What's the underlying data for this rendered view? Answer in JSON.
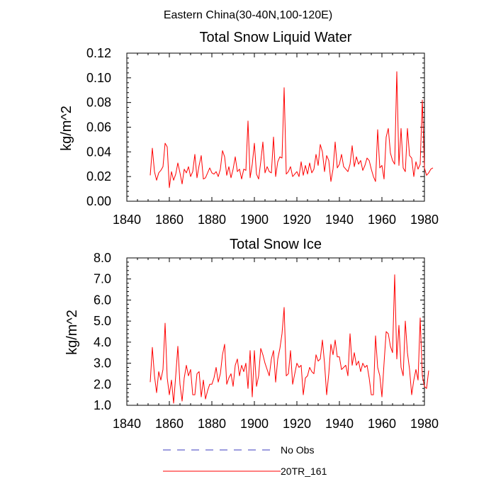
{
  "figure": {
    "title": "Eastern China(30-40N,100-120E)"
  },
  "legend": {
    "placement": "bottom-center",
    "items": [
      {
        "label": "No Obs",
        "color": "#3b3bbf",
        "style": "dashed"
      },
      {
        "label": "20TR_161",
        "color": "#ff0000",
        "style": "solid"
      }
    ]
  },
  "chart_data": [
    {
      "type": "line",
      "title": "Total Snow Liquid Water",
      "xlabel": "",
      "ylabel": "kg/m^2",
      "xlim": [
        1840,
        1980
      ],
      "ylim": [
        0,
        0.12
      ],
      "xticks": [
        1840,
        1860,
        1880,
        1900,
        1920,
        1940,
        1960,
        1980
      ],
      "xtick_labels": [
        "1840",
        "1860",
        "1880",
        "1900",
        "1920",
        "1940",
        "1960",
        "1980"
      ],
      "yticks": [
        0,
        0.02,
        0.04,
        0.06,
        0.08,
        0.1,
        0.12
      ],
      "ytick_labels": [
        "0.00",
        "0.02",
        "0.04",
        "0.06",
        "0.08",
        "0.10",
        "0.12"
      ],
      "grid": false,
      "series": [
        {
          "name": "20TR_161",
          "color": "#ff0000",
          "x_start": 1851,
          "values": [
            0.021,
            0.043,
            0.024,
            0.017,
            0.023,
            0.025,
            0.028,
            0.047,
            0.044,
            0.011,
            0.024,
            0.017,
            0.022,
            0.031,
            0.023,
            0.014,
            0.026,
            0.023,
            0.028,
            0.02,
            0.024,
            0.038,
            0.019,
            0.029,
            0.037,
            0.018,
            0.019,
            0.023,
            0.027,
            0.023,
            0.022,
            0.024,
            0.02,
            0.026,
            0.041,
            0.036,
            0.021,
            0.028,
            0.019,
            0.026,
            0.036,
            0.024,
            0.026,
            0.018,
            0.026,
            0.025,
            0.065,
            0.019,
            0.03,
            0.047,
            0.022,
            0.018,
            0.032,
            0.048,
            0.023,
            0.028,
            0.024,
            0.023,
            0.052,
            0.02,
            0.032,
            0.036,
            0.035,
            0.092,
            0.022,
            0.024,
            0.028,
            0.02,
            0.022,
            0.024,
            0.02,
            0.032,
            0.021,
            0.029,
            0.022,
            0.031,
            0.023,
            0.026,
            0.038,
            0.029,
            0.046,
            0.04,
            0.024,
            0.037,
            0.033,
            0.016,
            0.026,
            0.048,
            0.027,
            0.03,
            0.038,
            0.028,
            0.026,
            0.024,
            0.03,
            0.045,
            0.028,
            0.036,
            0.03,
            0.033,
            0.025,
            0.029,
            0.035,
            0.033,
            0.026,
            0.02,
            0.016,
            0.058,
            0.027,
            0.029,
            0.018,
            0.052,
            0.059,
            0.039,
            0.033,
            0.03,
            0.105,
            0.029,
            0.059,
            0.027,
            0.024,
            0.059,
            0.037,
            0.035,
            0.02,
            0.032,
            0.026,
            0.03,
            0.082,
            0.027,
            0.021,
            0.023,
            0.026,
            0.027
          ]
        }
      ]
    },
    {
      "type": "line",
      "title": "Total Snow Ice",
      "xlabel": "",
      "ylabel": "kg/m^2",
      "xlim": [
        1840,
        1980
      ],
      "ylim": [
        1.0,
        8.0
      ],
      "xticks": [
        1840,
        1860,
        1880,
        1900,
        1920,
        1940,
        1960,
        1980
      ],
      "xtick_labels": [
        "1840",
        "1860",
        "1880",
        "1900",
        "1920",
        "1940",
        "1960",
        "1980"
      ],
      "yticks": [
        1,
        2,
        3,
        4,
        5,
        6,
        7,
        8
      ],
      "ytick_labels": [
        "1.0",
        "2.0",
        "3.0",
        "4.0",
        "5.0",
        "6.0",
        "7.0",
        "8.0"
      ],
      "grid": false,
      "series": [
        {
          "name": "20TR_161",
          "color": "#ff0000",
          "x_start": 1851,
          "values": [
            2.1,
            3.75,
            2.4,
            1.6,
            2.6,
            2.2,
            2.7,
            4.9,
            2.3,
            1.5,
            2.2,
            1.1,
            2.4,
            3.8,
            2.0,
            1.2,
            2.3,
            2.9,
            2.4,
            2.7,
            1.5,
            1.5,
            2.5,
            2.6,
            1.4,
            2.2,
            1.3,
            1.7,
            2.0,
            2.0,
            2.3,
            2.8,
            2.1,
            2.5,
            3.4,
            3.9,
            2.0,
            2.3,
            2.5,
            1.9,
            2.9,
            3.2,
            2.4,
            2.9,
            2.6,
            3.0,
            1.8,
            3.6,
            1.4,
            3.6,
            1.9,
            2.4,
            3.7,
            3.4,
            3.0,
            2.7,
            2.4,
            3.2,
            3.6,
            2.1,
            3.2,
            3.7,
            4.4,
            5.65,
            2.4,
            2.5,
            3.6,
            2.0,
            2.5,
            3.0,
            2.8,
            2.9,
            1.5,
            2.3,
            2.4,
            2.8,
            2.6,
            2.5,
            3.4,
            3.1,
            3.2,
            4.1,
            3.0,
            1.5,
            2.5,
            3.9,
            3.4,
            4.1,
            3.3,
            3.3,
            2.7,
            2.8,
            2.9,
            2.4,
            4.4,
            2.9,
            3.5,
            2.9,
            3.1,
            2.6,
            3.0,
            2.8,
            2.9,
            2.3,
            1.5,
            1.5,
            4.3,
            2.8,
            2.4,
            1.4,
            3.0,
            4.5,
            4.4,
            3.8,
            3.5,
            7.2,
            3.2,
            4.8,
            2.8,
            2.4,
            5.0,
            3.5,
            2.7,
            1.5,
            2.2,
            2.7,
            2.2,
            5.15,
            2.4,
            1.9,
            1.8,
            2.65
          ]
        }
      ]
    }
  ]
}
